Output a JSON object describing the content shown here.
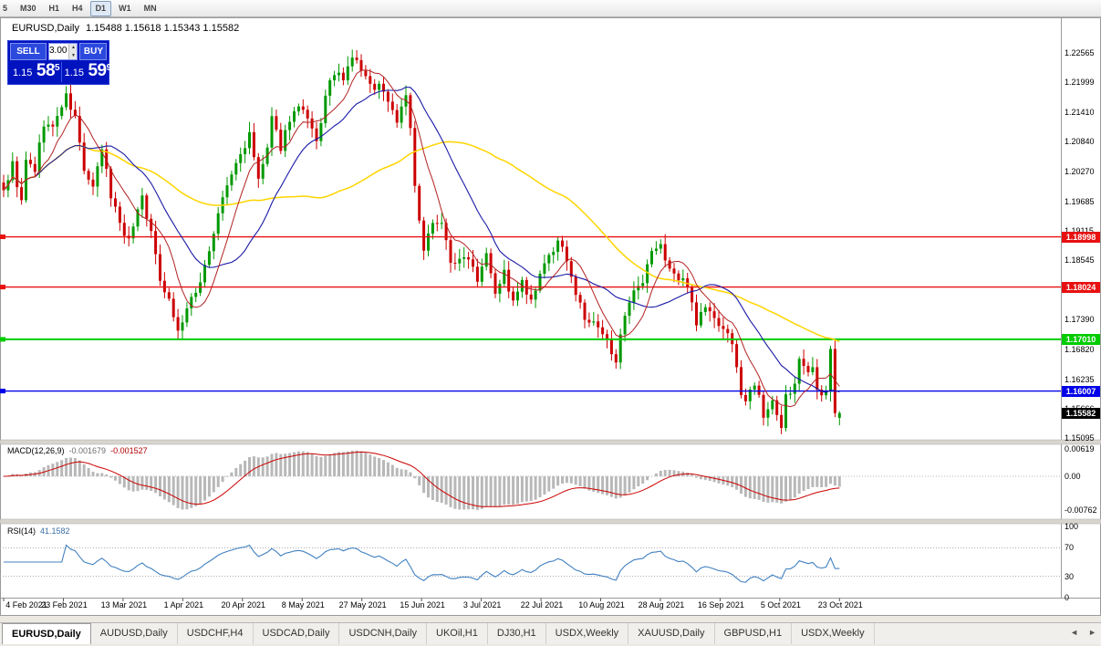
{
  "toolbar": {
    "timeframes": [
      {
        "label": "5",
        "active": false
      },
      {
        "label": "M30",
        "active": false
      },
      {
        "label": "H1",
        "active": false
      },
      {
        "label": "H4",
        "active": false
      },
      {
        "label": "D1",
        "active": true
      },
      {
        "label": "W1",
        "active": false
      },
      {
        "label": "MN",
        "active": false
      }
    ]
  },
  "chart": {
    "title": "EURUSD,Daily",
    "ohlc": "1.15488 1.15618 1.15343 1.15582",
    "trade_widget": {
      "sell_label": "SELL",
      "buy_label": "BUY",
      "volume": "3.00",
      "spin_up": "▲",
      "spin_down": "▼",
      "sell_price_prefix": "1.15",
      "sell_price_big": "58",
      "sell_price_sup": "5",
      "buy_price_prefix": "1.15",
      "buy_price_big": "59",
      "buy_price_sup": "9"
    },
    "price_axis_ticks": [
      "1.22565",
      "1.21999",
      "1.21410",
      "1.20840",
      "1.20270",
      "1.19685",
      "1.19115",
      "1.18545",
      "1.17975",
      "1.17390",
      "1.16820",
      "1.16235",
      "1.15666",
      "1.15095"
    ],
    "hlines": [
      {
        "value": 1.18998,
        "label": "1.18998",
        "color": "#e81010"
      },
      {
        "value": 1.18024,
        "label": "1.18024",
        "color": "#e81010"
      },
      {
        "value": 1.1701,
        "label": "1.17010",
        "color": "#00cc00"
      },
      {
        "value": 1.16007,
        "label": "1.16007",
        "color": "#0000e8"
      }
    ],
    "current_price": {
      "label": "1.15582",
      "color": "#000000"
    },
    "date_axis": [
      "4 Feb 2021",
      "23 Feb 2021",
      "13 Mar 2021",
      "1 Apr 2021",
      "20 Apr 2021",
      "8 May 2021",
      "27 May 2021",
      "15 Jun 2021",
      "3 Jul 2021",
      "22 Jul 2021",
      "10 Aug 2021",
      "28 Aug 2021",
      "16 Sep 2021",
      "5 Oct 2021",
      "23 Oct 2021"
    ]
  },
  "macd": {
    "label": "MACD(12,26,9)",
    "value_main": "-0.001679",
    "value_signal": "-0.001527",
    "axis_ticks": [
      "0.00619",
      "0.00",
      "-0.00762"
    ]
  },
  "rsi": {
    "label": "RSI(14)",
    "value": "41.1582",
    "axis_ticks": [
      "100",
      "70",
      "30",
      "0"
    ],
    "levels": [
      70,
      30
    ]
  },
  "tabs": [
    {
      "label": "EURUSD,Daily",
      "active": true
    },
    {
      "label": "AUDUSD,Daily",
      "active": false
    },
    {
      "label": "USDCHF,H4",
      "active": false
    },
    {
      "label": "USDCAD,Daily",
      "active": false
    },
    {
      "label": "USDCNH,Daily",
      "active": false
    },
    {
      "label": "UKOil,H1",
      "active": false
    },
    {
      "label": "DJ30,H1",
      "active": false
    },
    {
      "label": "USDX,Weekly",
      "active": false
    },
    {
      "label": "XAUUSD,Daily",
      "active": false
    },
    {
      "label": "GBPUSD,H1",
      "active": false
    },
    {
      "label": "USDX,Weekly",
      "active": false
    }
  ],
  "tab_arrows": {
    "left": "◄",
    "right": "►"
  },
  "chart_data": {
    "type": "candlestick",
    "symbol": "EURUSD",
    "timeframe": "Daily",
    "visible_range": {
      "price_top": 1.232,
      "price_bottom": 1.1508,
      "first_date": "4 Feb 2021",
      "last_date": "23 Oct 2021"
    },
    "current_bar": {
      "open": 1.15488,
      "high": 1.15618,
      "low": 1.15343,
      "close": 1.15582
    },
    "bid": "1.15585",
    "ask": "1.15599",
    "horizontal_levels": [
      1.18998,
      1.18024,
      1.1701,
      1.16007
    ],
    "indicators": [
      {
        "name": "MACD",
        "params": [
          12,
          26,
          9
        ],
        "last_main": -0.001679,
        "last_signal": -0.001527,
        "scale_min": -0.00762,
        "scale_max": 0.00619
      },
      {
        "name": "RSI",
        "params": [
          14
        ],
        "last": 41.1582,
        "scale_min": 0,
        "scale_max": 100
      },
      {
        "name": "MovingAverages",
        "series": [
          "fast-red",
          "medium-blue",
          "slow-yellow"
        ]
      }
    ],
    "price_path_anchors": [
      [
        0,
        1.199
      ],
      [
        2,
        1.204
      ],
      [
        4,
        1.1965
      ],
      [
        5,
        1.2045
      ],
      [
        7,
        1.203
      ],
      [
        9,
        1.212
      ],
      [
        11,
        1.211
      ],
      [
        13,
        1.2155
      ],
      [
        14,
        1.217
      ],
      [
        16,
        1.213
      ],
      [
        18,
        1.203
      ],
      [
        20,
        1.199
      ],
      [
        22,
        1.207
      ],
      [
        24,
        1.198
      ],
      [
        26,
        1.193
      ],
      [
        28,
        1.189
      ],
      [
        29,
        1.1925
      ],
      [
        31,
        1.198
      ],
      [
        33,
        1.1905
      ],
      [
        35,
        1.182
      ],
      [
        37,
        1.178
      ],
      [
        39,
        1.1715
      ],
      [
        41,
        1.176
      ],
      [
        43,
        1.179
      ],
      [
        45,
        1.1845
      ],
      [
        47,
        1.1905
      ],
      [
        49,
        1.1975
      ],
      [
        51,
        1.202
      ],
      [
        53,
        1.206
      ],
      [
        55,
        1.2095
      ],
      [
        57,
        1.201
      ],
      [
        59,
        1.207
      ],
      [
        60,
        1.2125
      ],
      [
        62,
        1.2075
      ],
      [
        64,
        1.213
      ],
      [
        66,
        1.215
      ],
      [
        68,
        1.2125
      ],
      [
        70,
        1.208
      ],
      [
        72,
        1.217
      ],
      [
        74,
        1.222
      ],
      [
        76,
        1.22
      ],
      [
        78,
        1.225
      ],
      [
        80,
        1.2225
      ],
      [
        82,
        1.219
      ],
      [
        84,
        1.2195
      ],
      [
        86,
        1.2165
      ],
      [
        88,
        1.2125
      ],
      [
        90,
        1.218
      ],
      [
        91,
        1.2105
      ],
      [
        92,
        1.1995
      ],
      [
        94,
        1.1865
      ],
      [
        96,
        1.1935
      ],
      [
        98,
        1.1925
      ],
      [
        100,
        1.1855
      ],
      [
        102,
        1.185
      ],
      [
        104,
        1.1865
      ],
      [
        106,
        1.182
      ],
      [
        108,
        1.1875
      ],
      [
        110,
        1.1795
      ],
      [
        112,
        1.183
      ],
      [
        114,
        1.177
      ],
      [
        116,
        1.181
      ],
      [
        118,
        1.177
      ],
      [
        120,
        1.182
      ],
      [
        122,
        1.1865
      ],
      [
        124,
        1.1885
      ],
      [
        126,
        1.186
      ],
      [
        128,
        1.179
      ],
      [
        130,
        1.174
      ],
      [
        132,
        1.173
      ],
      [
        134,
        1.171
      ],
      [
        136,
        1.168
      ],
      [
        137,
        1.1665
      ],
      [
        139,
        1.174
      ],
      [
        141,
        1.179
      ],
      [
        143,
        1.1805
      ],
      [
        145,
        1.1875
      ],
      [
        147,
        1.188
      ],
      [
        149,
        1.184
      ],
      [
        151,
        1.1815
      ],
      [
        153,
        1.181
      ],
      [
        155,
        1.1735
      ],
      [
        157,
        1.1765
      ],
      [
        159,
        1.174
      ],
      [
        161,
        1.1725
      ],
      [
        163,
        1.1695
      ],
      [
        164,
        1.164
      ],
      [
        165,
        1.16
      ],
      [
        166,
        1.158
      ],
      [
        167,
        1.16
      ],
      [
        168,
        1.162
      ],
      [
        169,
        1.16
      ],
      [
        170,
        1.1555
      ],
      [
        171,
        1.1565
      ],
      [
        172,
        1.1575
      ],
      [
        173,
        1.1555
      ],
      [
        174,
        1.1535
      ],
      [
        175,
        1.1595
      ],
      [
        176,
        1.16
      ],
      [
        177,
        1.161
      ],
      [
        178,
        1.1655
      ],
      [
        179,
        1.165
      ],
      [
        180,
        1.163
      ],
      [
        181,
        1.1645
      ],
      [
        182,
        1.161
      ],
      [
        183,
        1.16
      ],
      [
        184,
        1.1605
      ],
      [
        185,
        1.168
      ],
      [
        186,
        1.1558
      ]
    ],
    "colors": {
      "bull": "#009900",
      "bear": "#cc0000",
      "ma_fast": "#b22222",
      "ma_medium": "#1a1aa6",
      "ma_slow": "#ffd500",
      "macd_hist": "#b8b8b8",
      "macd_signal": "#cc0000",
      "rsi_line": "#4080c0"
    }
  }
}
